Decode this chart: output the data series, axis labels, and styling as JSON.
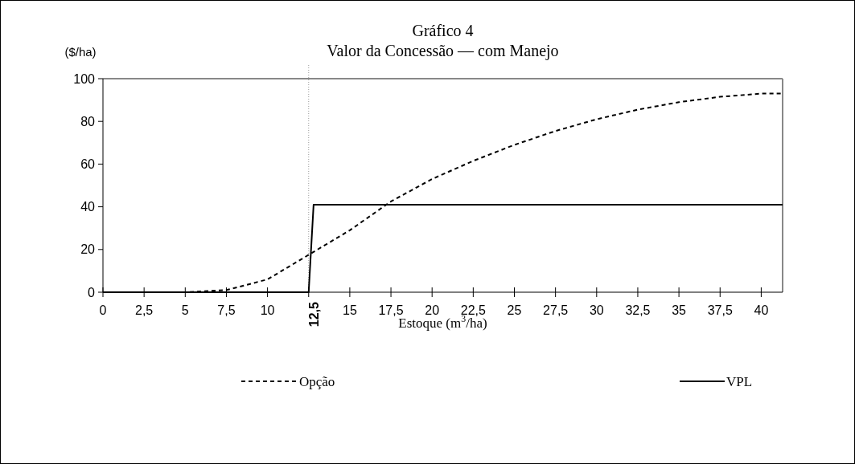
{
  "chart_data": {
    "type": "line",
    "title": "Gráfico 4",
    "subtitle": "Valor da Concessão — com Manejo",
    "ylabel": "($/ha)",
    "xlabel": "Estoque (m$^{3}$/ha)",
    "series": [
      {
        "name": "Opção",
        "color": "#000000",
        "line_style": "dashed",
        "x": [
          0,
          2.5,
          5,
          7.5,
          10,
          12.5,
          15,
          17.5,
          20,
          22.5,
          25,
          27.5,
          30,
          32.5,
          35,
          37.5,
          40,
          41.3
        ],
        "values": [
          0,
          0,
          0,
          1,
          6,
          17.5,
          29,
          42.5,
          53,
          61.5,
          69,
          75.5,
          81,
          85.5,
          89,
          91.5,
          93,
          93
        ]
      },
      {
        "name": "VPL",
        "color": "#000000",
        "line_style": "solid",
        "x": [
          0,
          12.5,
          12.8,
          41.3
        ],
        "values": [
          0,
          0,
          41,
          41
        ]
      }
    ],
    "xlim": [
      0,
      41.3
    ],
    "ylim": [
      0,
      100
    ],
    "xticks": [
      0,
      {
        "value": 2.5,
        "label": "2,5"
      },
      5,
      {
        "value": 7.5,
        "label": "7,5"
      },
      10,
      {
        "value": 12.5,
        "label": null
      },
      15,
      {
        "value": 17.5,
        "label": "17,5"
      },
      20,
      {
        "value": 22.5,
        "label": "22,5"
      },
      25,
      {
        "value": 27.5,
        "label": "27,5"
      },
      30,
      {
        "value": 32.5,
        "label": "32,5"
      },
      35,
      {
        "value": 37.5,
        "label": "37,5"
      },
      40
    ],
    "yticks": [
      0,
      20,
      40,
      60,
      80,
      100
    ],
    "ref_lines": [
      {
        "axis": "x",
        "value": 12.5,
        "label": "12,5",
        "color": "#999999",
        "line_style": "dotted"
      }
    ],
    "grid": false,
    "legend": "bottom"
  }
}
